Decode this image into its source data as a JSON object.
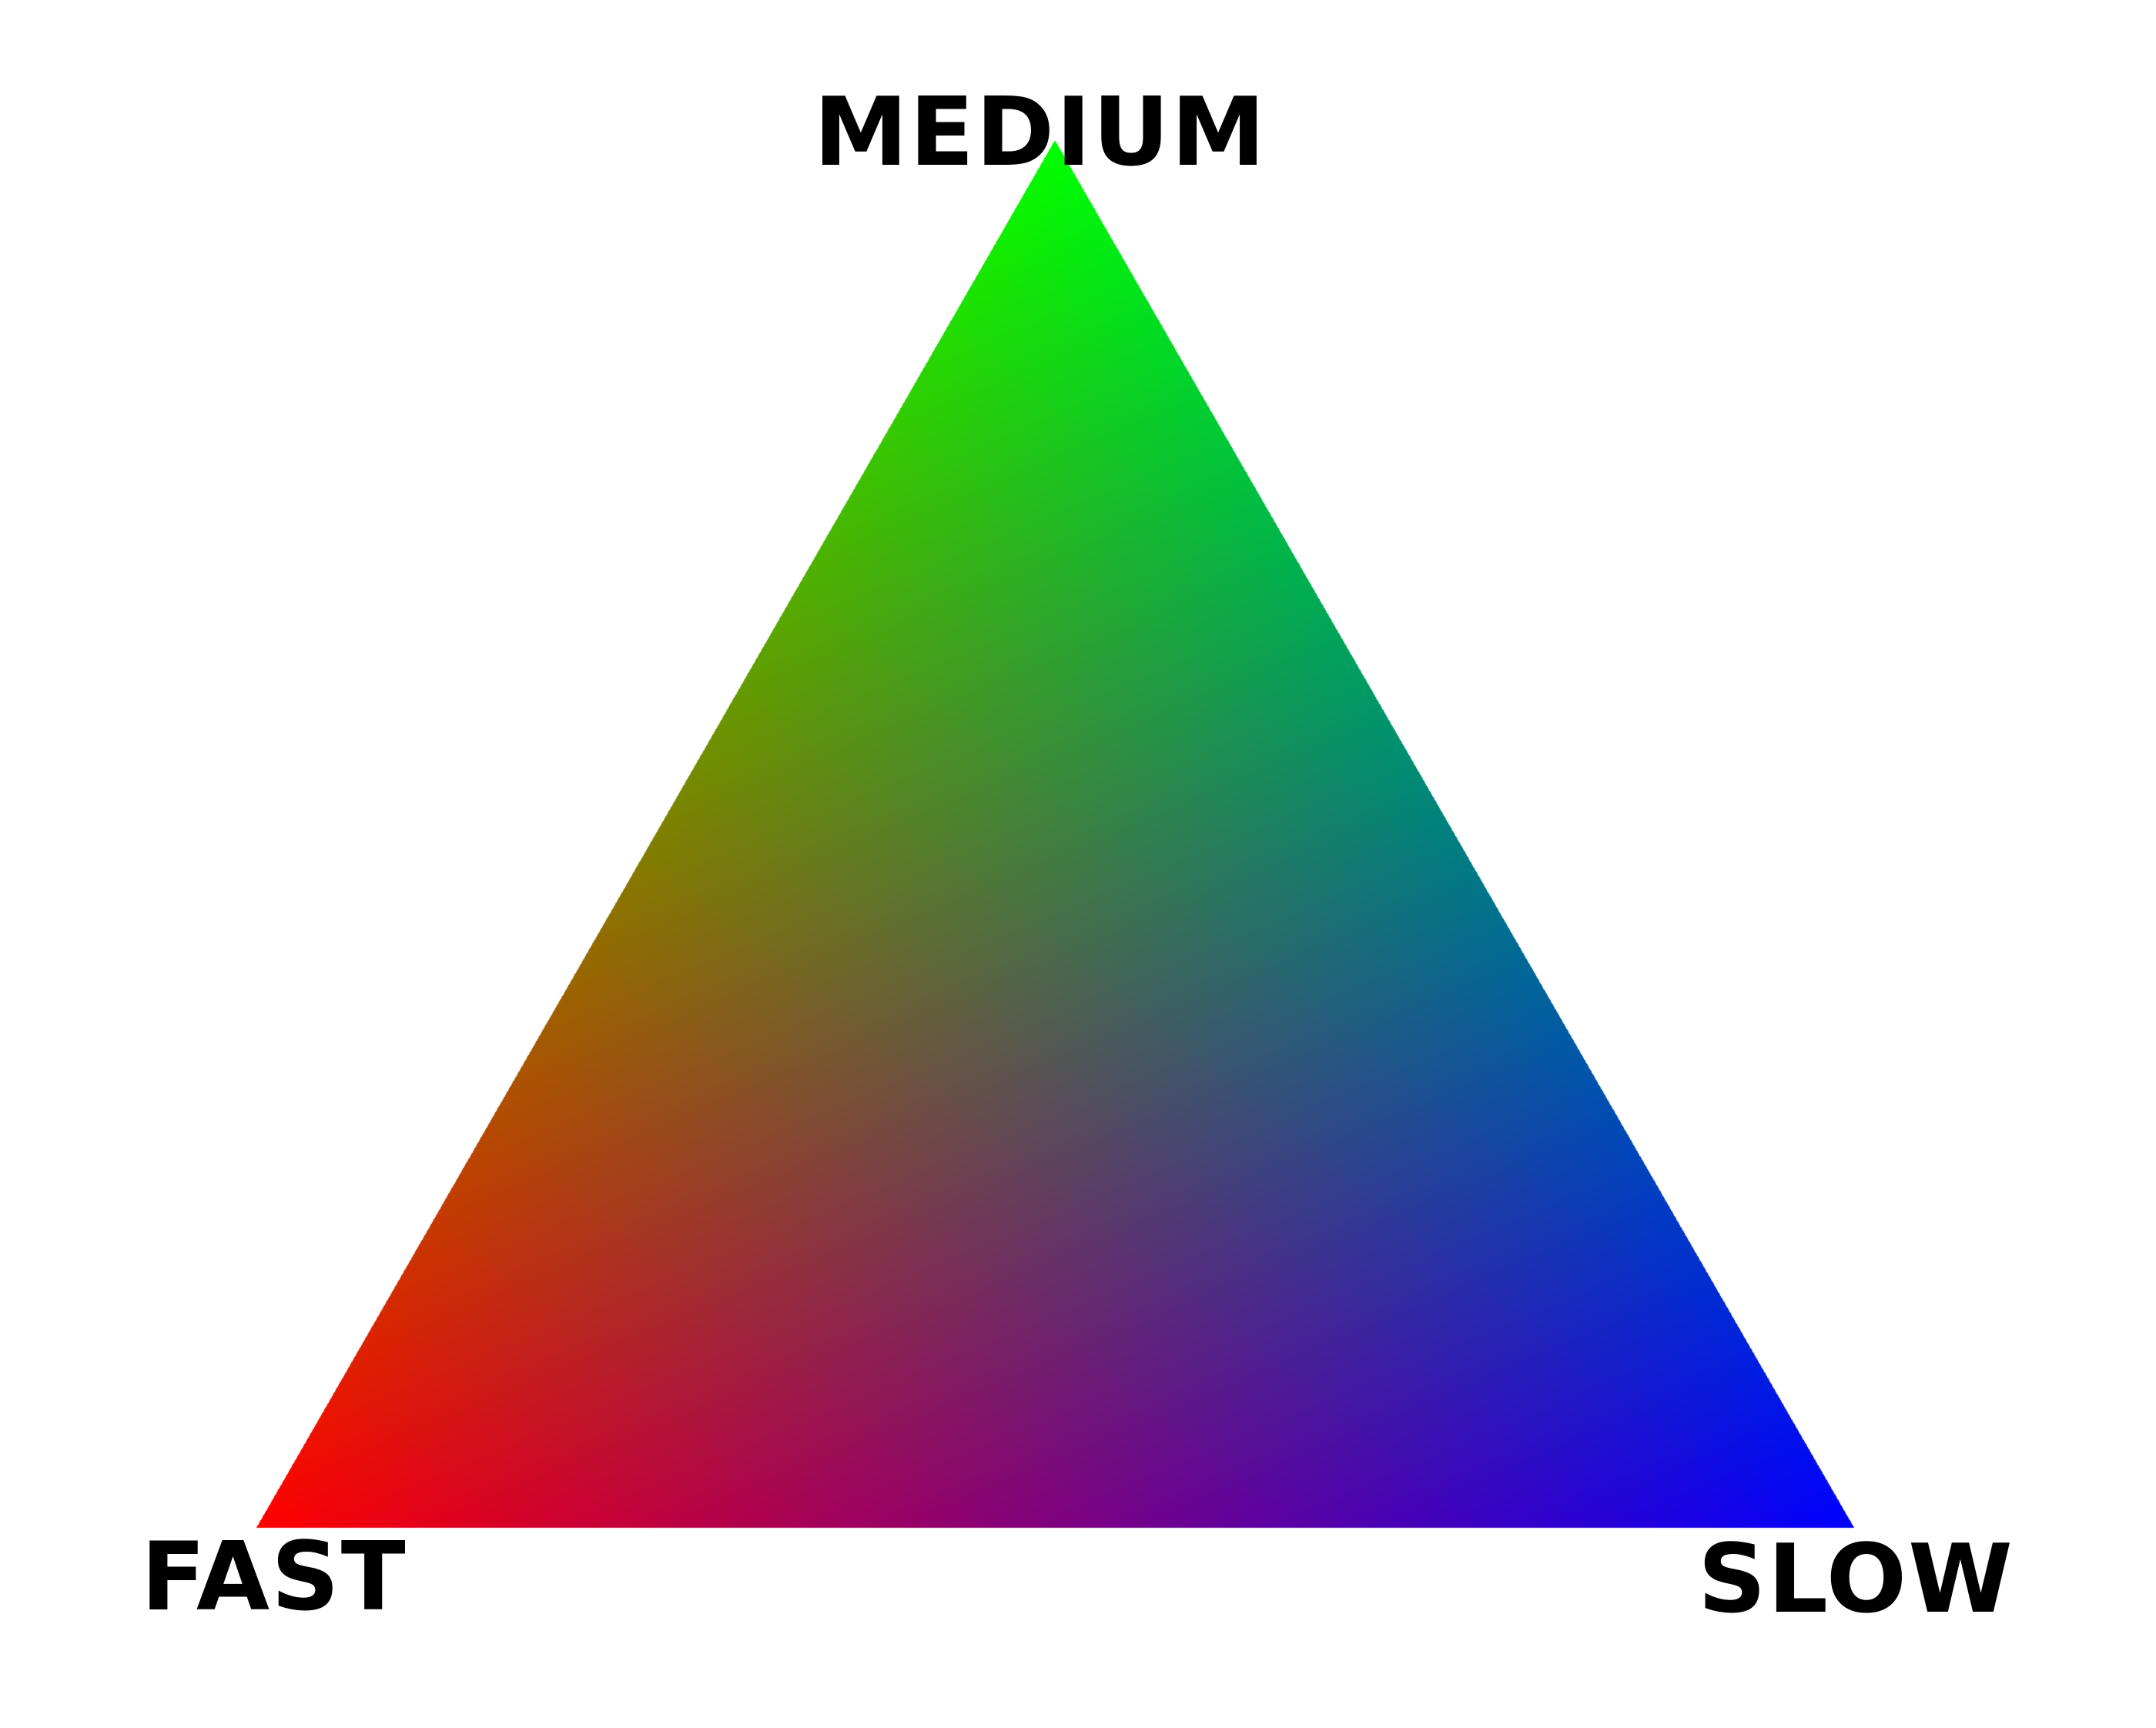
{
  "vertices": {
    "top": {
      "label": "MEDIUM",
      "color": "#00ff00"
    },
    "left": {
      "label": "FAST",
      "color": "#ff0000"
    },
    "right": {
      "label": "SLOW",
      "color": "#0000ff"
    }
  },
  "background": "#ffffff"
}
